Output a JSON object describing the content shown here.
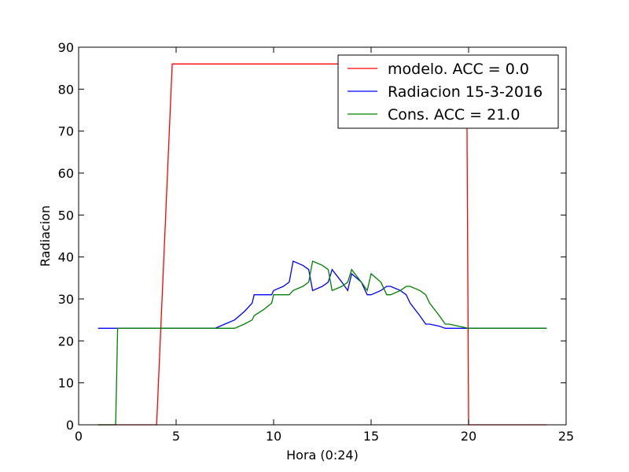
{
  "chart_data": {
    "type": "line",
    "xlabel": "Hora (0:24)",
    "ylabel": "Radiacion",
    "xlim": [
      0,
      25
    ],
    "ylim": [
      0,
      90
    ],
    "xticks": [
      0,
      5,
      10,
      15,
      20,
      25
    ],
    "yticks": [
      0,
      10,
      20,
      30,
      40,
      50,
      60,
      70,
      80,
      90
    ],
    "grid": false,
    "legend_position": "top-right",
    "series": [
      {
        "name": "modelo. ACC = 0.0",
        "color": "#ff0000",
        "x": [
          1,
          4,
          4.8,
          19.9,
          20,
          24
        ],
        "y": [
          0,
          0,
          86,
          86,
          0,
          0
        ]
      },
      {
        "name": "Radiacion 15-3-2016",
        "color": "#0000ff",
        "x": [
          1,
          2,
          3,
          4,
          5,
          6,
          7,
          7.5,
          8,
          8.5,
          8.9,
          9,
          9.5,
          9.9,
          10,
          10.5,
          10.8,
          11,
          11.5,
          11.8,
          12,
          12.5,
          12.8,
          13,
          13.5,
          13.8,
          14,
          14.5,
          14.8,
          15,
          15.5,
          15.8,
          16,
          16.5,
          16.8,
          17,
          17.5,
          17.8,
          18,
          18.5,
          18.8,
          19,
          20,
          21,
          22,
          23,
          24
        ],
        "y": [
          23,
          23,
          23,
          23,
          23,
          23,
          23,
          24,
          25,
          27,
          29,
          31,
          31,
          31,
          32,
          33,
          34,
          39,
          38,
          37,
          32,
          33,
          34,
          37,
          34,
          32,
          36,
          34,
          31,
          31,
          32,
          33,
          33,
          32,
          31,
          29,
          26,
          24,
          24,
          23.5,
          23,
          23,
          23,
          23,
          23,
          23,
          23
        ]
      },
      {
        "name": "Cons. ACC = 21.0",
        "color": "#008000",
        "x": [
          1,
          1.9,
          2,
          3,
          4,
          5,
          6,
          7,
          8,
          8.5,
          8.9,
          9,
          9.5,
          9.9,
          10,
          10.5,
          10.8,
          11,
          11.5,
          11.8,
          12,
          12.5,
          12.8,
          13,
          13.5,
          13.8,
          14,
          14.5,
          14.8,
          15,
          15.5,
          15.8,
          16,
          16.5,
          16.8,
          17,
          17.5,
          17.8,
          18,
          18.5,
          18.8,
          19,
          20,
          21,
          22,
          23,
          24
        ],
        "y": [
          0,
          0,
          23,
          23,
          23,
          23,
          23,
          23,
          23,
          24,
          25,
          26,
          27.5,
          29,
          31,
          31,
          31,
          32,
          33,
          34,
          39,
          38,
          37,
          32,
          33,
          34,
          37,
          34,
          32,
          36,
          34,
          31,
          31,
          32,
          33,
          33,
          32,
          31,
          29,
          26,
          24,
          24,
          23,
          23,
          23,
          23,
          23
        ]
      }
    ]
  }
}
